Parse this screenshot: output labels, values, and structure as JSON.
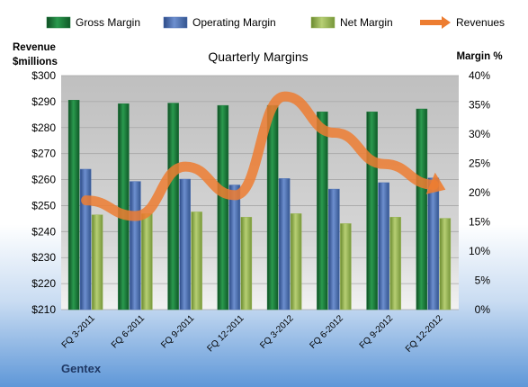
{
  "chart_data": {
    "type": "bar",
    "title": "Quarterly Margins",
    "categories": [
      "FQ 3-2011",
      "FQ 6-2011",
      "FQ 9-2011",
      "FQ 12-2011",
      "FQ 3-2012",
      "FQ 6-2012",
      "FQ 9-2012",
      "FQ 12-2012"
    ],
    "series": [
      {
        "name": "Gross Margin",
        "axis": "right",
        "color": "#1e7a3c",
        "values": [
          35.8,
          35.2,
          35.3,
          34.9,
          34.9,
          33.8,
          33.8,
          34.3
        ]
      },
      {
        "name": "Operating Margin",
        "axis": "right",
        "color": "#4a6fb5",
        "values": [
          24.0,
          21.9,
          22.3,
          21.3,
          22.4,
          20.6,
          21.7,
          22.5
        ]
      },
      {
        "name": "Net Margin",
        "axis": "right",
        "color": "#98b454",
        "values": [
          16.2,
          16.4,
          16.7,
          15.8,
          16.4,
          14.7,
          15.8,
          15.6
        ]
      },
      {
        "name": "Revenues",
        "axis": "left",
        "type": "line",
        "color": "#ed7d31",
        "values": [
          252,
          246,
          265,
          254,
          292,
          278,
          266,
          258
        ]
      }
    ],
    "ylabel_left": "Revenue $millions",
    "ylabel_left_lines": [
      "Revenue",
      "$millions"
    ],
    "ylabel_right": "Margin %",
    "ylim_left": [
      210,
      300
    ],
    "ylim_right": [
      0,
      40
    ],
    "yticks_left": [
      "$210",
      "$220",
      "$230",
      "$240",
      "$250",
      "$260",
      "$270",
      "$280",
      "$290",
      "$300"
    ],
    "yticks_right": [
      "0%",
      "5%",
      "10%",
      "15%",
      "20%",
      "25%",
      "30%",
      "35%",
      "40%"
    ],
    "grid": true,
    "legend_position": "top"
  },
  "footer": {
    "brand": "Gentex"
  }
}
